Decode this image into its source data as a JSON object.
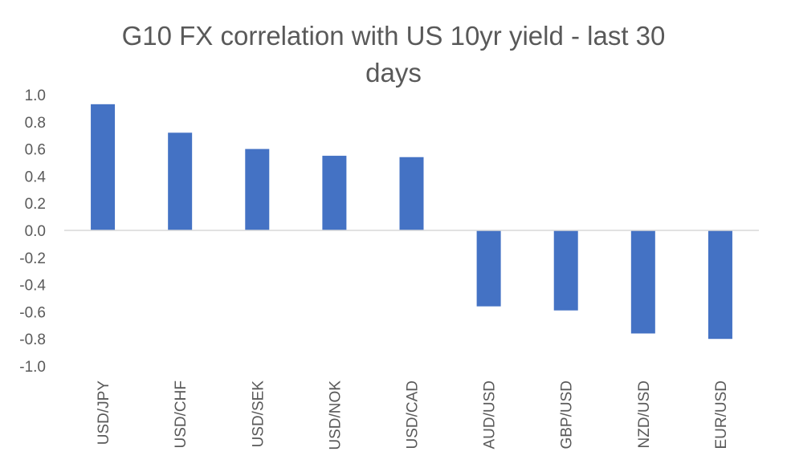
{
  "chart_data": {
    "type": "bar",
    "title": "G10 FX correlation with US 10yr yield - last 30 days",
    "title_lines": [
      "G10 FX correlation with US 10yr yield - last 30",
      "days"
    ],
    "categories": [
      "USD/JPY",
      "USD/CHF",
      "USD/SEK",
      "USD/NOK",
      "USD/CAD",
      "AUD/USD",
      "GBP/USD",
      "NZD/USD",
      "EUR/USD"
    ],
    "values": [
      0.93,
      0.72,
      0.6,
      0.55,
      0.54,
      -0.56,
      -0.59,
      -0.76,
      -0.8
    ],
    "ylim": [
      -1.0,
      1.0
    ],
    "yticks": [
      "1.0",
      "0.8",
      "0.6",
      "0.4",
      "0.2",
      "0.0",
      "-0.2",
      "-0.4",
      "-0.6",
      "-0.8",
      "-1.0"
    ],
    "xlabel": "",
    "ylabel": "",
    "grid": false,
    "legend": "none",
    "bar_color": "#4472C4",
    "axis_color": "#D9D9D9"
  }
}
